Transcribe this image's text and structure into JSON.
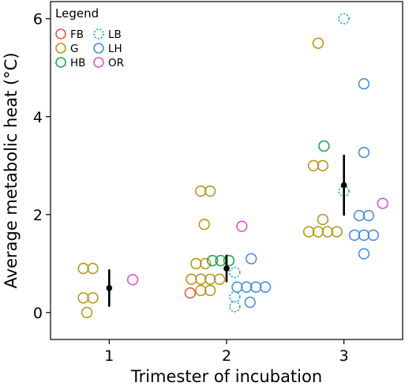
{
  "chart_data": {
    "type": "scatter",
    "xlabel": "Trimester of incubation",
    "ylabel": "Average metabolic heat (°C)",
    "xlim": [
      0.5,
      3.5
    ],
    "ylim": [
      -0.55,
      6.35
    ],
    "x_ticks": [
      1,
      2,
      3
    ],
    "y_ticks": [
      0,
      2,
      4,
      6
    ],
    "grid": false,
    "legend": {
      "title": "Legend",
      "placement": "top-left",
      "entries": [
        {
          "name": "FB",
          "color": "#e8594a",
          "dashed": false
        },
        {
          "name": "LB",
          "color": "#1aaeb5",
          "dashed": true
        },
        {
          "name": "G",
          "color": "#b8961e",
          "dashed": false
        },
        {
          "name": "LH",
          "color": "#4a8fe0",
          "dashed": false
        },
        {
          "name": "HB",
          "color": "#22a84a",
          "dashed": false
        },
        {
          "name": "OR",
          "color": "#dd55d0",
          "dashed": false
        }
      ]
    },
    "series": [
      {
        "name": "G",
        "points": [
          {
            "x": 0.78,
            "y": 0.9
          },
          {
            "x": 0.86,
            "y": 0.9
          },
          {
            "x": 0.78,
            "y": 0.3
          },
          {
            "x": 0.86,
            "y": 0.3
          },
          {
            "x": 0.81,
            "y": 0.0
          },
          {
            "x": 1.78,
            "y": 2.48
          },
          {
            "x": 1.86,
            "y": 2.48
          },
          {
            "x": 1.81,
            "y": 1.8
          },
          {
            "x": 1.74,
            "y": 1.0
          },
          {
            "x": 1.82,
            "y": 1.0
          },
          {
            "x": 1.7,
            "y": 0.68
          },
          {
            "x": 1.78,
            "y": 0.68
          },
          {
            "x": 1.86,
            "y": 0.68
          },
          {
            "x": 1.94,
            "y": 0.68
          },
          {
            "x": 1.78,
            "y": 0.45
          },
          {
            "x": 1.86,
            "y": 0.45
          },
          {
            "x": 2.78,
            "y": 5.5
          },
          {
            "x": 2.74,
            "y": 3.0
          },
          {
            "x": 2.82,
            "y": 3.0
          },
          {
            "x": 2.82,
            "y": 1.9
          },
          {
            "x": 2.7,
            "y": 1.65
          },
          {
            "x": 2.78,
            "y": 1.65
          },
          {
            "x": 2.86,
            "y": 1.65
          },
          {
            "x": 2.94,
            "y": 1.65
          }
        ]
      },
      {
        "name": "FB",
        "points": [
          {
            "x": 1.69,
            "y": 0.4
          }
        ]
      },
      {
        "name": "HB",
        "points": [
          {
            "x": 1.88,
            "y": 1.06
          },
          {
            "x": 1.95,
            "y": 1.06
          },
          {
            "x": 2.02,
            "y": 1.06
          },
          {
            "x": 2.83,
            "y": 3.4
          }
        ]
      },
      {
        "name": "LB",
        "points": [
          {
            "x": 2.07,
            "y": 0.82
          },
          {
            "x": 2.07,
            "y": 0.32
          },
          {
            "x": 2.07,
            "y": 0.12
          },
          {
            "x": 3.0,
            "y": 6.0
          },
          {
            "x": 3.0,
            "y": 2.48
          }
        ]
      },
      {
        "name": "LH",
        "points": [
          {
            "x": 2.21,
            "y": 1.1
          },
          {
            "x": 2.09,
            "y": 0.52
          },
          {
            "x": 2.17,
            "y": 0.52
          },
          {
            "x": 2.25,
            "y": 0.52
          },
          {
            "x": 2.33,
            "y": 0.52
          },
          {
            "x": 2.2,
            "y": 0.21
          },
          {
            "x": 3.17,
            "y": 4.67
          },
          {
            "x": 3.17,
            "y": 3.27
          },
          {
            "x": 3.13,
            "y": 1.98
          },
          {
            "x": 3.21,
            "y": 1.98
          },
          {
            "x": 3.09,
            "y": 1.58
          },
          {
            "x": 3.17,
            "y": 1.58
          },
          {
            "x": 3.25,
            "y": 1.58
          },
          {
            "x": 3.17,
            "y": 1.2
          }
        ]
      },
      {
        "name": "OR",
        "points": [
          {
            "x": 1.2,
            "y": 0.67
          },
          {
            "x": 2.13,
            "y": 1.76
          },
          {
            "x": 3.33,
            "y": 2.23
          }
        ]
      }
    ],
    "summary": [
      {
        "x": 1,
        "mean": 0.5,
        "lower": 0.12,
        "upper": 0.88
      },
      {
        "x": 2,
        "mean": 0.9,
        "lower": 0.62,
        "upper": 1.18
      },
      {
        "x": 3,
        "mean": 2.6,
        "lower": 1.98,
        "upper": 3.22
      }
    ]
  }
}
